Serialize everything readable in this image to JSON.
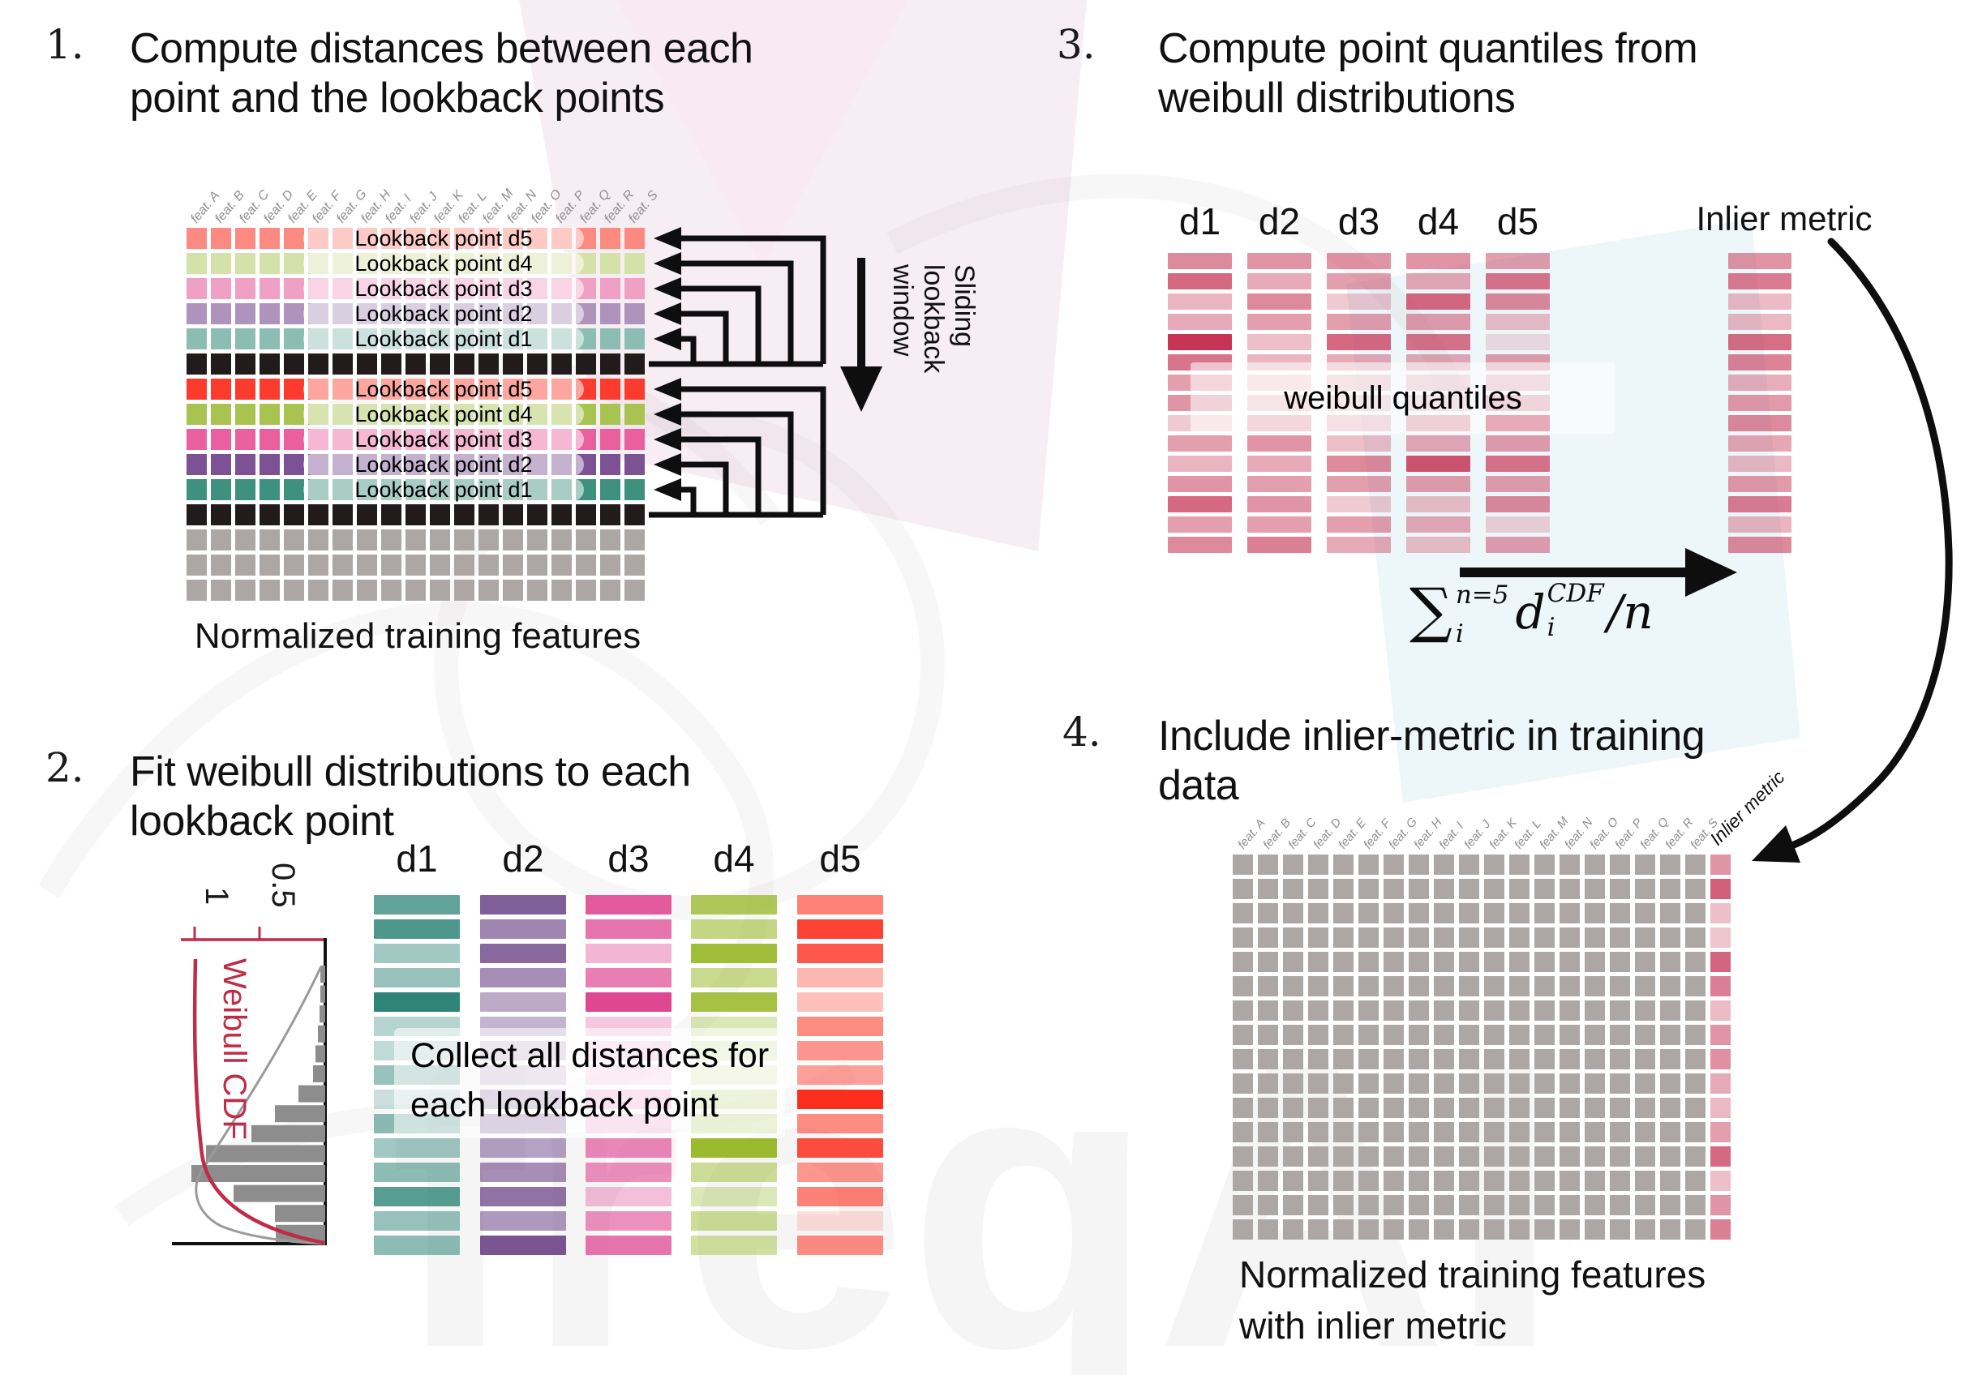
{
  "watermark": "freqAI",
  "colors": {
    "black_cell": "#221b1b",
    "gray_cell": "#aca7a4",
    "crimson": "#c32a4d",
    "cdf_red": "#be2c47",
    "hist_gray": "#8d8d8d",
    "arrow_black": "#0e0e0e"
  },
  "step1": {
    "number": "1.",
    "title_line1": "Compute distances between each",
    "title_line2": "point and the lookback points",
    "caption": "Normalized training features",
    "feature_labels": [
      "feat. A",
      "feat. B",
      "feat. C",
      "feat. D",
      "feat. E",
      "feat. F",
      "feat. G",
      "feat. H",
      "feat. I",
      "feat. J",
      "feat. K",
      "feat. L",
      "feat. M",
      "feat. N",
      "feat. O",
      "feat. P",
      "feat. Q",
      "feat. R",
      "feat. S"
    ],
    "sliding_lines": [
      "Sliding",
      "lookback",
      "window"
    ],
    "rows": [
      {
        "color": "#fc8a80",
        "label": "Lookback point d5"
      },
      {
        "color": "#d4e1a8",
        "label": "Lookback point d4"
      },
      {
        "color": "#f09fc5",
        "label": "Lookback point d3"
      },
      {
        "color": "#ae94bd",
        "label": "Lookback point d2"
      },
      {
        "color": "#8cbdb2",
        "label": "Lookback point d1"
      },
      {
        "color": "#221b1b"
      },
      {
        "color": "#fb3b2d",
        "label": "Lookback point d5"
      },
      {
        "color": "#a9c351",
        "label": "Lookback point d4"
      },
      {
        "color": "#ea5f9e",
        "label": "Lookback point d3"
      },
      {
        "color": "#7d5295",
        "label": "Lookback point d2"
      },
      {
        "color": "#3f917f",
        "label": "Lookback point d1"
      },
      {
        "color": "#221b1b"
      },
      {
        "color": "#aca7a4"
      },
      {
        "color": "#aca7a4"
      },
      {
        "color": "#aca7a4"
      }
    ]
  },
  "step2": {
    "number": "2.",
    "title_line1": "Fit weibull distributions to each",
    "title_line2": "lookback point",
    "overlay_line1": "Collect all distances for",
    "overlay_line2": "each lookback point",
    "column_headers": [
      "d1",
      "d2",
      "d3",
      "d4",
      "d5"
    ],
    "plot": {
      "label": "Weibull CDF",
      "tick_label_1": "1",
      "tick_label_05": "0.5",
      "hist": [
        6,
        6,
        7,
        9,
        12,
        15,
        33,
        62,
        91,
        147,
        165,
        113,
        62,
        61
      ]
    },
    "columns": [
      {
        "name": "d1",
        "color": "#2e8577",
        "shades": [
          0.75,
          0.85,
          0.45,
          0.5,
          1,
          0.35,
          0.3,
          0.5,
          0.25,
          0.55,
          0.45,
          0.55,
          0.8,
          0.5,
          0.55
        ]
      },
      {
        "name": "d2",
        "color": "#6b4386",
        "shades": [
          0.85,
          0.65,
          0.8,
          0.6,
          0.45,
          0.4,
          0.3,
          0.28,
          0.45,
          0.55,
          0.5,
          0.6,
          0.75,
          0.55,
          0.9
        ]
      },
      {
        "name": "d3",
        "color": "#df4792",
        "shades": [
          0.9,
          0.75,
          0.4,
          0.7,
          1,
          0.3,
          0.25,
          0.2,
          0.35,
          0.3,
          0.65,
          0.6,
          0.35,
          0.6,
          0.75
        ]
      },
      {
        "name": "d4",
        "color": "#9cba30",
        "shades": [
          0.8,
          0.6,
          0.95,
          0.55,
          0.9,
          0.35,
          0.3,
          0.25,
          0.4,
          0.45,
          1,
          0.5,
          0.35,
          0.5,
          0.45
        ]
      },
      {
        "name": "d5",
        "color": "#fb2d1d",
        "shades": [
          0.6,
          0.9,
          0.8,
          0.35,
          0.3,
          0.55,
          0.5,
          0.45,
          1,
          0.55,
          0.85,
          0.5,
          0.6,
          0.15,
          0.55
        ]
      }
    ]
  },
  "step3": {
    "number": "3.",
    "title_line1": "Compute point quantiles from",
    "title_line2": "weibull distributions",
    "column_headers": [
      "d1",
      "d2",
      "d3",
      "d4",
      "d5"
    ],
    "inlier_header": "Inlier metric",
    "overlay_label": "weibull quantiles",
    "formula": {
      "sum": "∑",
      "sum_sup": "n=5",
      "sum_sub": "i",
      "var": "d",
      "var_sup": "CDF",
      "var_sub": "i",
      "tail": "/n"
    },
    "columns": [
      {
        "name": "d1",
        "shades": [
          0.55,
          0.7,
          0.35,
          0.4,
          0.95,
          0.65,
          0.45,
          0.5,
          0.25,
          0.45,
          0.35,
          0.5,
          0.7,
          0.45,
          0.55
        ]
      },
      {
        "name": "d2",
        "shades": [
          0.5,
          0.4,
          0.55,
          0.45,
          0.3,
          0.35,
          0.25,
          0.3,
          0.45,
          0.5,
          0.4,
          0.45,
          0.5,
          0.45,
          0.6
        ]
      },
      {
        "name": "d3",
        "shades": [
          0.5,
          0.45,
          0.25,
          0.45,
          0.7,
          0.4,
          0.3,
          0.25,
          0.35,
          0.3,
          0.55,
          0.45,
          0.25,
          0.45,
          0.4
        ]
      },
      {
        "name": "d4",
        "shades": [
          0.5,
          0.4,
          0.7,
          0.45,
          0.65,
          0.4,
          0.3,
          0.25,
          0.5,
          0.4,
          0.8,
          0.45,
          0.3,
          0.4,
          0.3
        ]
      },
      {
        "name": "d5",
        "shades": [
          0.45,
          0.65,
          0.55,
          0.3,
          0.15,
          0.45,
          0.35,
          0.45,
          0.95,
          0.45,
          0.65,
          0.45,
          0.55,
          0.2,
          0.45
        ]
      }
    ],
    "inlier_shades": [
      0.5,
      0.62,
      0.32,
      0.33,
      0.68,
      0.58,
      0.38,
      0.48,
      0.55,
      0.42,
      0.33,
      0.48,
      0.62,
      0.35,
      0.55
    ]
  },
  "step4": {
    "number": "4.",
    "title_line1": "Include inlier-metric in training",
    "title_line2": "data",
    "caption_line1": "Normalized training features",
    "caption_line2": "with inlier metric",
    "inlier_label": "Inlier metric",
    "feature_labels": [
      "feat. A",
      "feat. B",
      "feat. C",
      "feat. D",
      "feat. E",
      "feat. F",
      "feat. G",
      "feat. H",
      "feat. I",
      "feat. J",
      "feat. K",
      "feat. L",
      "feat. M",
      "feat. N",
      "feat. O",
      "feat. P",
      "feat. Q",
      "feat. R",
      "feat. S"
    ],
    "rows": 16,
    "feature_cols": 19,
    "inlier_shades": [
      0.5,
      0.75,
      0.3,
      0.28,
      0.72,
      0.6,
      0.32,
      0.5,
      0.52,
      0.4,
      0.33,
      0.45,
      0.7,
      0.3,
      0.5,
      0.6
    ]
  }
}
